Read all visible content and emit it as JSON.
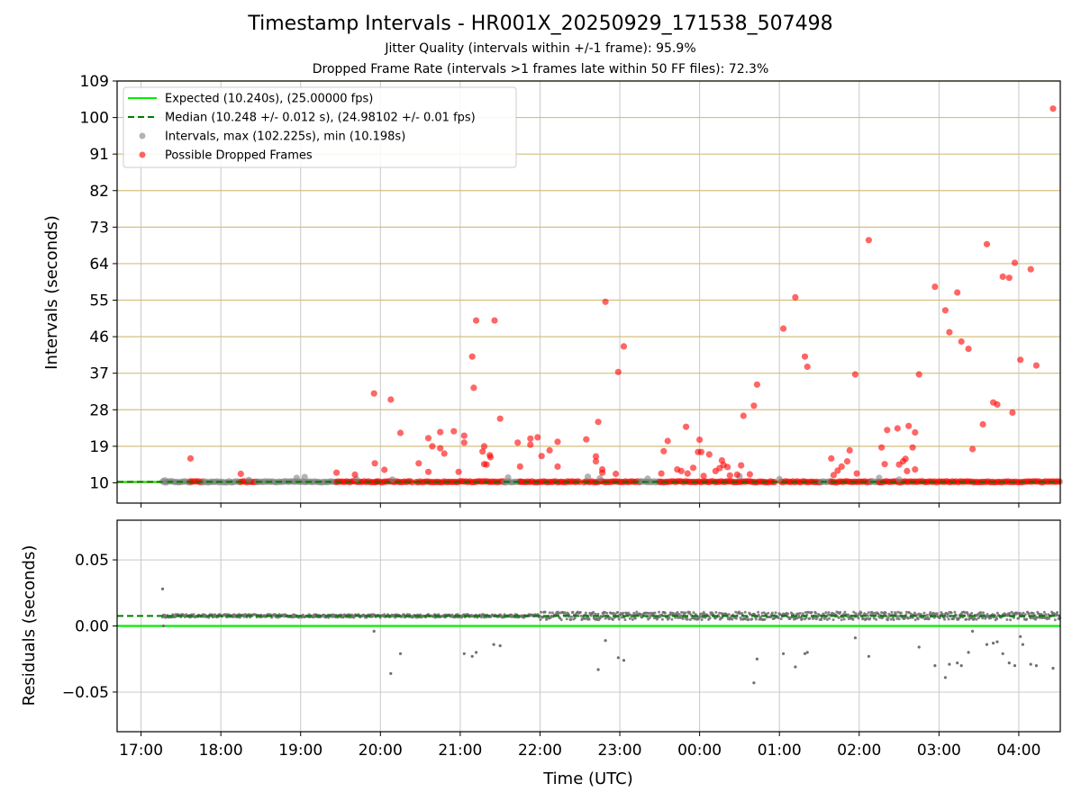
{
  "header": {
    "title": "Timestamp Intervals - HR001X_20250929_171538_507498",
    "jitter_quality": "Jitter Quality (intervals within +/-1 frame): 95.9%",
    "dropped_rate": "Dropped Frame Rate (intervals >1 frames late within 50 FF files): 72.3%"
  },
  "colors": {
    "expected": "#00ee00",
    "median": "#007a00",
    "intervals": "#808080",
    "dropped": "#ff0000",
    "hgrid": "#d4c07e",
    "vgrid": "#c8c8c8"
  },
  "chart_data": [
    {
      "type": "scatter",
      "name": "intervals-panel",
      "ylabel": "Intervals (seconds)",
      "ylim": [
        5,
        109
      ],
      "yticks": [
        10,
        19,
        28,
        37,
        46,
        55,
        64,
        73,
        82,
        91,
        100,
        109
      ],
      "xlim_hours": [
        16.7,
        28.52
      ],
      "legend": {
        "placement": "top-left",
        "entries": [
          "Expected (10.240s), (25.00000 fps)",
          "Median (10.248 +/- 0.012 s), (24.98102 +/- 0.01 fps)",
          "Intervals, max (102.225s), min (10.198s)",
          "Possible Dropped Frames"
        ]
      },
      "expected_interval": 10.24,
      "median_interval": 10.248,
      "dense_segments": [
        {
          "start": 17.27,
          "end": 17.62,
          "y": 10.24,
          "color": "gray"
        },
        {
          "start": 17.62,
          "end": 17.78,
          "y": 10.25,
          "color": "red"
        },
        {
          "start": 17.78,
          "end": 18.25,
          "y": 10.24,
          "color": "gray"
        },
        {
          "start": 18.25,
          "end": 18.45,
          "y": 10.25,
          "color": "red"
        },
        {
          "start": 18.45,
          "end": 19.45,
          "y": 10.24,
          "color": "gray"
        },
        {
          "start": 19.45,
          "end": 19.95,
          "y": 10.25,
          "color": "red"
        },
        {
          "start": 19.95,
          "end": 20.42,
          "y": 10.25,
          "color": "red"
        },
        {
          "start": 20.45,
          "end": 21.55,
          "y": 10.25,
          "color": "red"
        },
        {
          "start": 21.55,
          "end": 21.75,
          "y": 10.24,
          "color": "gray"
        },
        {
          "start": 21.75,
          "end": 22.5,
          "y": 10.25,
          "color": "red"
        },
        {
          "start": 22.55,
          "end": 23.25,
          "y": 10.25,
          "color": "red"
        },
        {
          "start": 23.25,
          "end": 23.5,
          "y": 10.24,
          "color": "gray"
        },
        {
          "start": 23.5,
          "end": 24.95,
          "y": 10.25,
          "color": "red"
        },
        {
          "start": 25.02,
          "end": 25.52,
          "y": 10.25,
          "color": "red"
        },
        {
          "start": 25.52,
          "end": 25.65,
          "y": 10.24,
          "color": "gray"
        },
        {
          "start": 25.65,
          "end": 26.15,
          "y": 10.25,
          "color": "red"
        },
        {
          "start": 26.15,
          "end": 26.25,
          "y": 10.24,
          "color": "gray"
        },
        {
          "start": 26.25,
          "end": 28.52,
          "y": 10.25,
          "color": "red"
        }
      ],
      "gray_points": [
        [
          17.3,
          10.6
        ],
        [
          18.35,
          10.7
        ],
        [
          18.95,
          11.2
        ],
        [
          19.05,
          11.4
        ],
        [
          19.7,
          10.9
        ],
        [
          20.15,
          10.8
        ],
        [
          21.6,
          11.3
        ],
        [
          22.6,
          11.5
        ],
        [
          22.75,
          11.1
        ],
        [
          23.35,
          11.0
        ],
        [
          24.5,
          11.6
        ],
        [
          25.0,
          10.9
        ],
        [
          26.25,
          11.2
        ],
        [
          26.5,
          10.8
        ]
      ],
      "dropped_points": [
        [
          17.62,
          16.0
        ],
        [
          18.25,
          12.2
        ],
        [
          19.45,
          12.5
        ],
        [
          19.68,
          12.0
        ],
        [
          19.92,
          32.0
        ],
        [
          19.93,
          14.8
        ],
        [
          20.05,
          13.2
        ],
        [
          20.13,
          30.5
        ],
        [
          20.25,
          22.3
        ],
        [
          20.48,
          14.8
        ],
        [
          20.6,
          21.0
        ],
        [
          20.6,
          12.7
        ],
        [
          20.65,
          19.0
        ],
        [
          20.75,
          18.5
        ],
        [
          20.75,
          22.5
        ],
        [
          20.8,
          17.2
        ],
        [
          20.92,
          22.7
        ],
        [
          20.98,
          12.7
        ],
        [
          21.05,
          21.6
        ],
        [
          21.05,
          19.9
        ],
        [
          21.15,
          41.1
        ],
        [
          21.17,
          33.4
        ],
        [
          21.2,
          50.0
        ],
        [
          21.28,
          17.7
        ],
        [
          21.3,
          19.0
        ],
        [
          21.3,
          14.6
        ],
        [
          21.33,
          14.5
        ],
        [
          21.37,
          16.8
        ],
        [
          21.38,
          16.3
        ],
        [
          21.43,
          50.0
        ],
        [
          21.5,
          25.8
        ],
        [
          21.72,
          19.9
        ],
        [
          21.75,
          14.0
        ],
        [
          21.88,
          19.4
        ],
        [
          21.88,
          20.9
        ],
        [
          21.97,
          21.2
        ],
        [
          22.02,
          16.6
        ],
        [
          22.12,
          18.0
        ],
        [
          22.22,
          20.1
        ],
        [
          22.22,
          14.0
        ],
        [
          22.58,
          20.7
        ],
        [
          22.7,
          15.3
        ],
        [
          22.7,
          16.5
        ],
        [
          22.73,
          25.0
        ],
        [
          22.78,
          13.3
        ],
        [
          22.78,
          12.5
        ],
        [
          22.82,
          54.6
        ],
        [
          22.95,
          12.2
        ],
        [
          22.98,
          37.3
        ],
        [
          23.05,
          43.6
        ],
        [
          23.52,
          12.3
        ],
        [
          23.55,
          17.8
        ],
        [
          23.6,
          20.3
        ],
        [
          23.72,
          13.3
        ],
        [
          23.77,
          12.9
        ],
        [
          23.83,
          23.8
        ],
        [
          23.85,
          12.3
        ],
        [
          23.92,
          13.7
        ],
        [
          23.98,
          17.6
        ],
        [
          24.0,
          20.6
        ],
        [
          24.02,
          17.6
        ],
        [
          24.05,
          11.7
        ],
        [
          24.12,
          17.0
        ],
        [
          24.2,
          12.9
        ],
        [
          24.25,
          13.6
        ],
        [
          24.28,
          15.5
        ],
        [
          24.3,
          14.4
        ],
        [
          24.35,
          13.9
        ],
        [
          24.38,
          11.8
        ],
        [
          24.47,
          12.0
        ],
        [
          24.52,
          14.3
        ],
        [
          24.55,
          26.5
        ],
        [
          24.68,
          29.0
        ],
        [
          24.72,
          34.2
        ],
        [
          24.63,
          12.1
        ],
        [
          25.05,
          48.0
        ],
        [
          25.2,
          55.7
        ],
        [
          25.32,
          41.1
        ],
        [
          25.35,
          38.6
        ],
        [
          25.65,
          16.0
        ],
        [
          25.68,
          11.9
        ],
        [
          25.73,
          13.0
        ],
        [
          25.78,
          14.0
        ],
        [
          25.85,
          15.3
        ],
        [
          25.88,
          18.0
        ],
        [
          25.95,
          36.7
        ],
        [
          25.97,
          12.3
        ],
        [
          26.12,
          69.8
        ],
        [
          26.28,
          18.7
        ],
        [
          26.32,
          14.6
        ],
        [
          26.35,
          23.0
        ],
        [
          26.48,
          23.4
        ],
        [
          26.5,
          14.5
        ],
        [
          26.55,
          15.3
        ],
        [
          26.58,
          15.9
        ],
        [
          26.6,
          12.9
        ],
        [
          26.62,
          24.0
        ],
        [
          26.67,
          18.7
        ],
        [
          26.7,
          22.4
        ],
        [
          26.7,
          13.3
        ],
        [
          26.75,
          36.7
        ],
        [
          26.95,
          58.3
        ],
        [
          27.08,
          52.5
        ],
        [
          27.13,
          47.1
        ],
        [
          27.23,
          56.9
        ],
        [
          27.28,
          44.8
        ],
        [
          27.37,
          43.0
        ],
        [
          27.42,
          18.3
        ],
        [
          27.55,
          24.4
        ],
        [
          27.6,
          68.8
        ],
        [
          27.68,
          29.8
        ],
        [
          27.73,
          29.3
        ],
        [
          27.8,
          60.8
        ],
        [
          27.88,
          60.5
        ],
        [
          27.92,
          27.3
        ],
        [
          27.95,
          64.2
        ],
        [
          28.02,
          40.3
        ],
        [
          28.15,
          62.6
        ],
        [
          28.22,
          38.9
        ],
        [
          28.43,
          102.2
        ]
      ]
    },
    {
      "type": "scatter",
      "name": "residuals-panel",
      "ylabel": "Residuals (seconds)",
      "xlabel": "Time (UTC)",
      "ylim": [
        -0.08,
        0.08
      ],
      "yticks": [
        0.05,
        0.0,
        -0.05
      ],
      "ytick_labels": [
        "0.05",
        "0.00",
        "−0.05"
      ],
      "xlim_hours": [
        16.7,
        28.52
      ],
      "xticks_hours": [
        17,
        18,
        19,
        20,
        21,
        22,
        23,
        24,
        25,
        26,
        27,
        28
      ],
      "xtick_labels": [
        "17:00",
        "18:00",
        "19:00",
        "20:00",
        "21:00",
        "22:00",
        "23:00",
        "00:00",
        "01:00",
        "02:00",
        "03:00",
        "04:00"
      ],
      "expected_residual": 0.0,
      "median_residual": 0.0076,
      "band": {
        "start": 17.27,
        "end": 28.52,
        "center": 0.0076,
        "spread_early": 0.0012,
        "spread_late": 0.003,
        "widen_after": 22.0
      },
      "outliers": [
        [
          17.27,
          0.028
        ],
        [
          17.28,
          0.0
        ],
        [
          17.9,
          0.008
        ],
        [
          19.92,
          -0.004
        ],
        [
          20.13,
          -0.036
        ],
        [
          20.25,
          -0.021
        ],
        [
          21.05,
          -0.021
        ],
        [
          21.15,
          -0.023
        ],
        [
          21.2,
          -0.02
        ],
        [
          21.42,
          -0.014
        ],
        [
          21.5,
          -0.015
        ],
        [
          22.73,
          -0.033
        ],
        [
          22.82,
          -0.011
        ],
        [
          22.98,
          -0.024
        ],
        [
          23.05,
          -0.026
        ],
        [
          24.68,
          -0.043
        ],
        [
          24.72,
          -0.025
        ],
        [
          25.05,
          -0.021
        ],
        [
          25.2,
          -0.031
        ],
        [
          25.32,
          -0.021
        ],
        [
          25.35,
          -0.02
        ],
        [
          25.95,
          -0.009
        ],
        [
          26.12,
          -0.023
        ],
        [
          26.75,
          -0.016
        ],
        [
          26.95,
          -0.03
        ],
        [
          27.08,
          -0.039
        ],
        [
          27.13,
          -0.029
        ],
        [
          27.23,
          -0.028
        ],
        [
          27.28,
          -0.03
        ],
        [
          27.37,
          -0.02
        ],
        [
          27.42,
          -0.004
        ],
        [
          27.6,
          -0.014
        ],
        [
          27.68,
          -0.013
        ],
        [
          27.73,
          -0.012
        ],
        [
          27.8,
          -0.021
        ],
        [
          27.88,
          -0.028
        ],
        [
          27.95,
          -0.03
        ],
        [
          28.02,
          -0.008
        ],
        [
          28.15,
          -0.029
        ],
        [
          28.22,
          -0.03
        ],
        [
          28.43,
          -0.032
        ],
        [
          28.05,
          -0.014
        ]
      ]
    }
  ]
}
